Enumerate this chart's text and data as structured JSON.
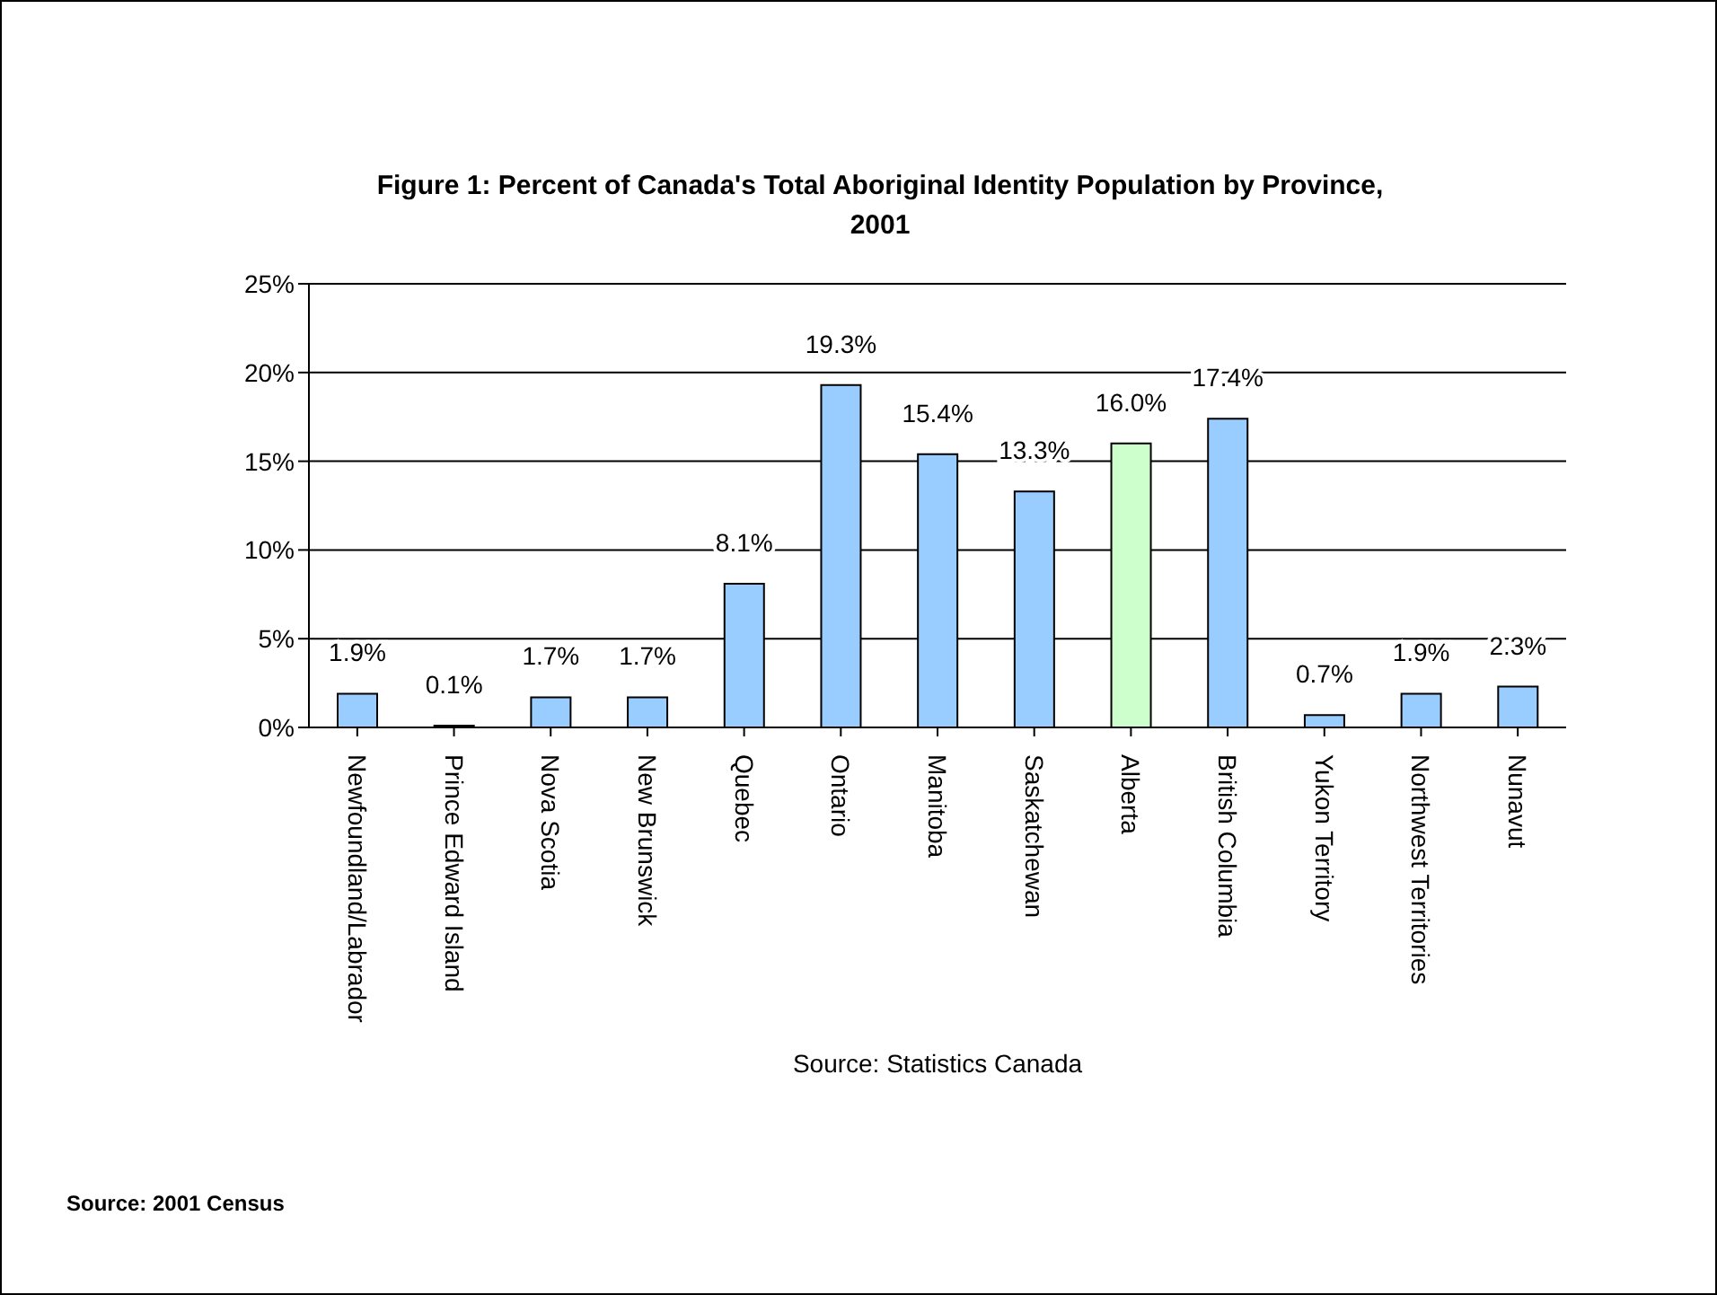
{
  "chart_data": {
    "type": "bar",
    "title": "Figure 1: Percent of Canada's Total Aboriginal Identity Population by Province, 2001",
    "categories": [
      "Newfoundland/Labrador",
      "Prince Edward Island",
      "Nova Scotia",
      "New Brunswick",
      "Quebec",
      "Ontario",
      "Manitoba",
      "Saskatchewan",
      "Alberta",
      "British Columbia",
      "Yukon Territory",
      "Northwest Territories",
      "Nunavut"
    ],
    "values": [
      1.9,
      0.1,
      1.7,
      1.7,
      8.1,
      19.3,
      15.4,
      13.3,
      16.0,
      17.4,
      0.7,
      1.9,
      2.3
    ],
    "value_labels": [
      "1.9%",
      "0.1%",
      "1.7%",
      "1.7%",
      "8.1%",
      "19.3%",
      "15.4%",
      "13.3%",
      "16.0%",
      "17.4%",
      "0.7%",
      "1.9%",
      "2.3%"
    ],
    "colors": [
      "#99ccff",
      "#99ccff",
      "#99ccff",
      "#99ccff",
      "#99ccff",
      "#99ccff",
      "#99ccff",
      "#99ccff",
      "#ccffcc",
      "#99ccff",
      "#99ccff",
      "#99ccff",
      "#99ccff"
    ],
    "ylim": [
      0,
      25
    ],
    "yticks": [
      {
        "value": 0,
        "label": "0%"
      },
      {
        "value": 5,
        "label": "5%"
      },
      {
        "value": 10,
        "label": "10%"
      },
      {
        "value": 15,
        "label": "15%"
      },
      {
        "value": 20,
        "label": "20%"
      },
      {
        "value": 25,
        "label": "25%"
      }
    ],
    "grid": "y",
    "annotations": [
      "Source: Statistics Canada",
      "Source: 2001 Census"
    ]
  }
}
